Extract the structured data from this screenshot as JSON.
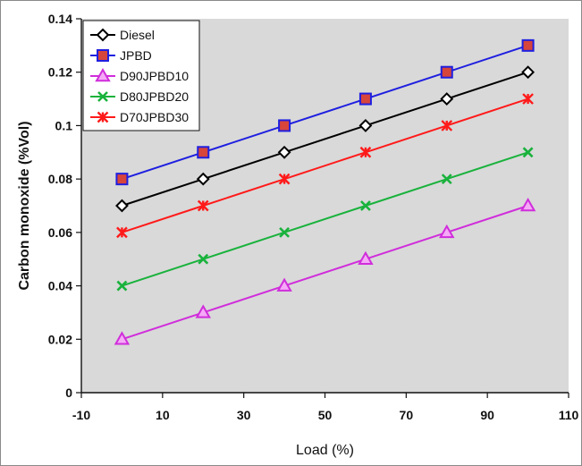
{
  "chart_data": {
    "type": "line",
    "title": "",
    "xlabel": "Load (%)",
    "ylabel": "Carbon monoxide (%Vol)",
    "xlim": [
      -10,
      110
    ],
    "ylim": [
      0,
      0.14
    ],
    "x_ticks": [
      -10,
      10,
      30,
      50,
      70,
      90,
      110
    ],
    "y_ticks": [
      0,
      0.02,
      0.04,
      0.06,
      0.08,
      0.1,
      0.12,
      0.14
    ],
    "x_tick_labels": [
      "-10",
      "10",
      "30",
      "50",
      "70",
      "90",
      "110"
    ],
    "y_tick_labels": [
      "0",
      "0.02",
      "0.04",
      "0.06",
      "0.08",
      "0.1",
      "0.12",
      "0.14"
    ],
    "grid": false,
    "legend_position": "top-left",
    "x": [
      0,
      20,
      40,
      60,
      80,
      100
    ],
    "series": [
      {
        "name": "Diesel",
        "values": [
          0.07,
          0.08,
          0.09,
          0.1,
          0.11,
          0.12
        ],
        "color": "#000000",
        "marker": "diamond",
        "marker_fill": "#ffffff"
      },
      {
        "name": "JPBD",
        "values": [
          0.08,
          0.09,
          0.1,
          0.11,
          0.12,
          0.13
        ],
        "color": "#1f1fe0",
        "marker": "square",
        "marker_fill": "#d7453b"
      },
      {
        "name": "D90JPBD10",
        "values": [
          0.02,
          0.03,
          0.04,
          0.05,
          0.06,
          0.07
        ],
        "color": "#d02ddb",
        "marker": "triangle",
        "marker_fill": "#f5a9f7"
      },
      {
        "name": "D80JPBD20",
        "values": [
          0.04,
          0.05,
          0.06,
          0.07,
          0.08,
          0.09
        ],
        "color": "#19b23c",
        "marker": "x",
        "marker_fill": "#19b23c"
      },
      {
        "name": "D70JPBD30",
        "values": [
          0.06,
          0.07,
          0.08,
          0.09,
          0.1,
          0.11
        ],
        "color": "#ff1a1a",
        "marker": "star",
        "marker_fill": "#ff1a1a"
      }
    ],
    "plot_background": "#d9d9d9"
  }
}
